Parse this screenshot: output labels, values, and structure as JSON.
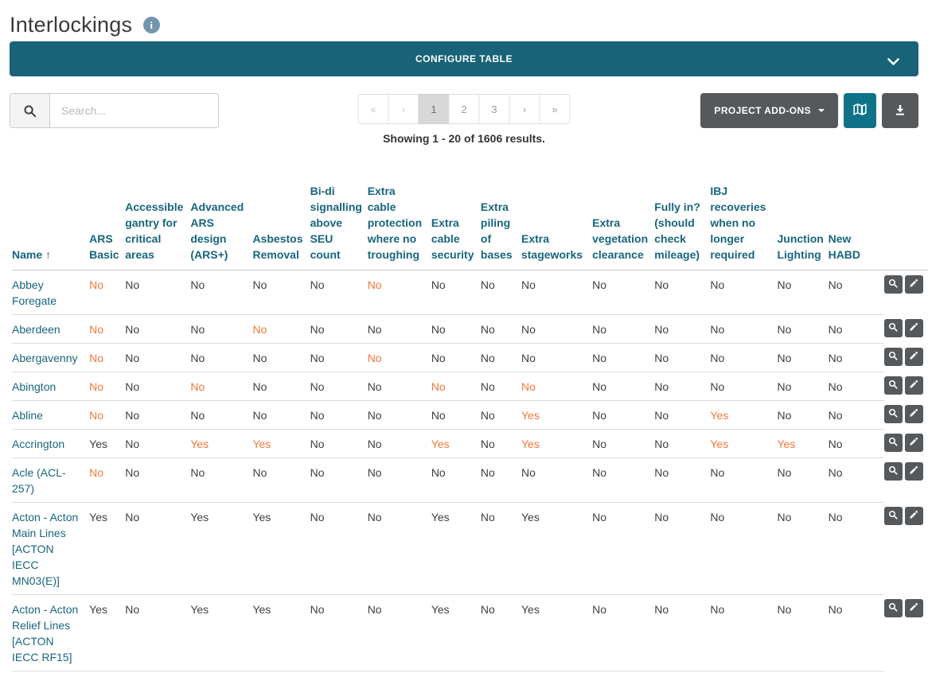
{
  "page": {
    "title": "Interlockings"
  },
  "configure_bar": {
    "label": "CONFIGURE TABLE"
  },
  "search": {
    "placeholder": "Search..."
  },
  "pagination": {
    "buttons": [
      "«",
      "‹",
      "1",
      "2",
      "3",
      "›",
      "»"
    ],
    "active_index": 2,
    "dim_indexes": [
      0,
      1
    ],
    "summary": "Showing 1 - 20 of 1606 results."
  },
  "toolbar": {
    "project_addons_label": "PROJECT ADD-ONS",
    "map_button": "map-icon",
    "download_button": "download-icon"
  },
  "icons": {
    "info": "i",
    "sort_asc": "↑",
    "search": "magnifier-glyph",
    "chevron_down": "chevron-glyph",
    "caret_down": "triangle-down",
    "view": "magnifier-glyph",
    "edit": "pencil-glyph"
  },
  "colors": {
    "teal-banner": "#186377",
    "teal-header": "#17657e",
    "link": "#17657e",
    "orange": "#f0783a",
    "btn-dark": "#55595c",
    "btn-teal": "#0f7289",
    "info-bg": "#7195ac"
  },
  "table": {
    "sorted_column": "Name",
    "sort_direction": "asc",
    "columns": [
      "Name",
      "ARS Basic",
      "Accessible gantry for critical areas",
      "Advanced ARS design (ARS+)",
      "Asbestos Removal",
      "Bi-di signalling above SEU count",
      "Extra cable protection where no troughing",
      "Extra cable security",
      "Extra piling of bases",
      "Extra stageworks",
      "Extra vegetation clearance",
      "Fully in? (should check mileage)",
      "IBJ recoveries when no longer required",
      "Junction Lighting",
      "New HABD"
    ],
    "rows": [
      {
        "name": "Abbey Foregate",
        "values": [
          "No",
          "No",
          "No",
          "No",
          "No",
          "No",
          "No",
          "No",
          "No",
          "No",
          "No",
          "No",
          "No",
          "No"
        ],
        "highlighted": [
          0,
          5
        ],
        "clip": {
          "text": "N",
          "orange": false
        }
      },
      {
        "name": "Aberdeen",
        "values": [
          "No",
          "No",
          "No",
          "No",
          "No",
          "No",
          "No",
          "No",
          "No",
          "No",
          "No",
          "No",
          "No",
          "No"
        ],
        "highlighted": [
          0,
          3
        ],
        "clip": {
          "text": "N",
          "orange": false
        }
      },
      {
        "name": "Abergavenny",
        "values": [
          "No",
          "No",
          "No",
          "No",
          "No",
          "No",
          "No",
          "No",
          "No",
          "No",
          "No",
          "No",
          "No",
          "No"
        ],
        "highlighted": [
          0,
          5
        ],
        "clip": {
          "text": "N",
          "orange": false
        }
      },
      {
        "name": "Abington",
        "values": [
          "No",
          "No",
          "No",
          "No",
          "No",
          "No",
          "No",
          "No",
          "No",
          "No",
          "No",
          "No",
          "No",
          "No"
        ],
        "highlighted": [
          0,
          2,
          6,
          8
        ],
        "clip": {
          "text": "1",
          "orange": true
        }
      },
      {
        "name": "Abline",
        "values": [
          "No",
          "No",
          "No",
          "No",
          "No",
          "No",
          "No",
          "No",
          "Yes",
          "No",
          "No",
          "Yes",
          "No",
          "No"
        ],
        "highlighted": [
          0,
          8,
          11
        ],
        "clip": {
          "text": "6",
          "orange": true
        }
      },
      {
        "name": "Accrington",
        "values": [
          "Yes",
          "No",
          "Yes",
          "Yes",
          "No",
          "No",
          "Yes",
          "No",
          "Yes",
          "No",
          "No",
          "Yes",
          "Yes",
          "No"
        ],
        "highlighted": [
          2,
          3,
          6,
          8,
          11,
          12
        ],
        "clip": {
          "text": "N",
          "orange": false
        }
      },
      {
        "name": "Acle (ACL-257)",
        "values": [
          "No",
          "No",
          "No",
          "No",
          "No",
          "No",
          "No",
          "No",
          "No",
          "No",
          "No",
          "No",
          "No",
          "No"
        ],
        "highlighted": [
          0
        ],
        "clip": {
          "text": "N",
          "orange": false
        }
      },
      {
        "name": "Acton - Acton Main Lines [ACTON IECC MN03(E)]",
        "values": [
          "Yes",
          "No",
          "Yes",
          "Yes",
          "No",
          "No",
          "Yes",
          "No",
          "Yes",
          "No",
          "No",
          "No",
          "No",
          "No"
        ],
        "highlighted": [],
        "clip": {
          "text": "6",
          "orange": false
        }
      },
      {
        "name": "Acton - Acton Relief Lines [ACTON IECC RF15]",
        "values": [
          "Yes",
          "No",
          "Yes",
          "Yes",
          "No",
          "No",
          "Yes",
          "No",
          "Yes",
          "No",
          "No",
          "No",
          "No",
          "No"
        ],
        "highlighted": [],
        "clip": {
          "text": "6",
          "orange": false
        }
      }
    ]
  }
}
